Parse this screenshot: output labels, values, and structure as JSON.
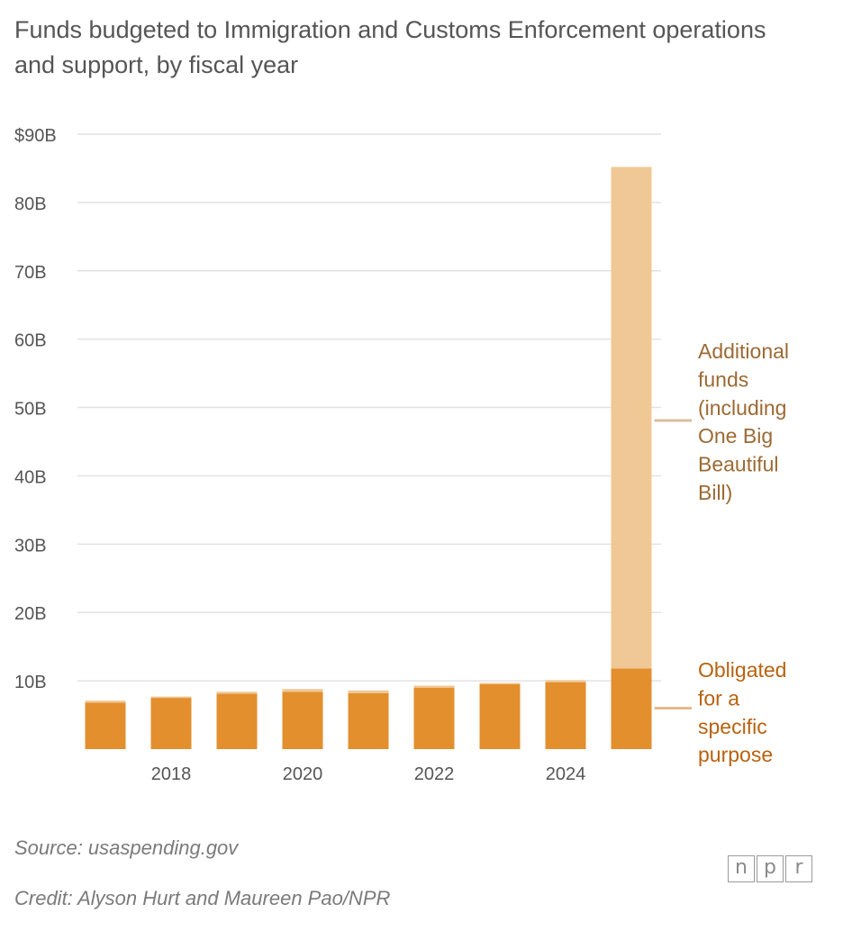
{
  "title": "Funds budgeted to Immigration and Customs Enforcement operations and support, by fiscal year",
  "source": "Source: usaspending.gov",
  "credit": "Credit: Alyson Hurt and Maureen Pao/NPR",
  "logo": {
    "letters": [
      "n",
      "p",
      "r"
    ],
    "icon": "npr-logo-icon"
  },
  "colors": {
    "obligated": "#E38F2D",
    "additional": "#F0C896",
    "grid": "#e2e2e2",
    "tick_text": "#555555",
    "annot_obligated": "#B8620F",
    "annot_additional": "#9C6A33",
    "leader_additional": "#D8BE9C",
    "leader_obligated": "#E8B98A"
  },
  "chart_data": {
    "type": "bar",
    "stacked": true,
    "title": "Funds budgeted to Immigration and Customs Enforcement operations and support, by fiscal year",
    "xlabel": "",
    "ylabel": "",
    "ylim": [
      0,
      90
    ],
    "yticks": [
      10,
      20,
      30,
      40,
      50,
      60,
      70,
      80,
      90
    ],
    "ytick_labels": [
      "10B",
      "20B",
      "30B",
      "40B",
      "50B",
      "60B",
      "70B",
      "80B",
      "$90B"
    ],
    "x": [
      2017,
      2018,
      2019,
      2020,
      2021,
      2022,
      2023,
      2024,
      2025
    ],
    "xticks": [
      2018,
      2020,
      2022,
      2024
    ],
    "xtick_labels": [
      "2018",
      "2020",
      "2022",
      "2024"
    ],
    "series": [
      {
        "name": "Obligated for a specific purpose",
        "values": [
          6.8,
          7.5,
          8.1,
          8.4,
          8.2,
          9.0,
          9.5,
          9.8,
          11.8
        ]
      },
      {
        "name": "Additional funds (including One Big Beautiful Bill)",
        "values": [
          0.3,
          0.2,
          0.3,
          0.4,
          0.4,
          0.3,
          0.2,
          0.3,
          73.4
        ]
      }
    ],
    "annotations": [
      {
        "series": "Additional funds (including One Big Beautiful Bill)",
        "lines": [
          "Additional",
          "funds",
          "(including",
          "One Big",
          "Beautiful",
          "Bill)"
        ]
      },
      {
        "series": "Obligated for a specific purpose",
        "lines": [
          "Obligated",
          "for a",
          "specific",
          "purpose"
        ]
      }
    ]
  }
}
